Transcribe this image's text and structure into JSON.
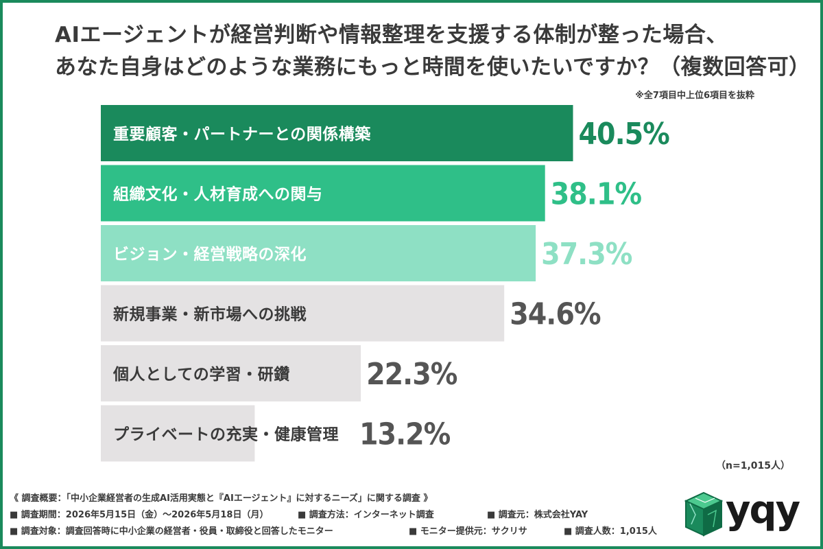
{
  "title_line1": "AIエージェントが経営判断や情報整理を支援する体制が整った場合、",
  "title_line2": "あなた自身はどのような業務にもっと時間を使いたいですか？（複数回答可）",
  "note": "※全7項目中上位6項目を抜粋",
  "sample_size": "（n=1,015人）",
  "chart_data": {
    "type": "bar",
    "orientation": "horizontal",
    "categories": [
      "重要顧客・パートナーとの関係構築",
      "組織文化・人材育成への関与",
      "ビジョン・経営戦略の深化",
      "新規事業・新市場への挑戦",
      "個人としての学習・研鑽",
      "プライベートの充実・健康管理"
    ],
    "values": [
      40.5,
      38.1,
      37.3,
      34.6,
      22.3,
      13.2
    ],
    "value_labels": [
      "40.5%",
      "38.1%",
      "37.3%",
      "34.6%",
      "22.3%",
      "13.2%"
    ],
    "unit": "%",
    "bar_colors": [
      "#1a8a5c",
      "#2fbf88",
      "#8ee0c4",
      "#e4e2e3",
      "#e4e2e3",
      "#e4e2e3"
    ],
    "label_colors": [
      "#ffffff",
      "#ffffff",
      "#ffffff",
      "#3a3a3a",
      "#3a3a3a",
      "#3a3a3a"
    ],
    "value_colors": [
      "#1a8a5c",
      "#2fbf88",
      "#8ee0c4",
      "#555555",
      "#555555",
      "#555555"
    ]
  },
  "footer": {
    "line1": "《 調査概要：「中小企業経営者の生成AI活用実態と『AIエージェント』に対するニーズ」に関する調査 》",
    "period": "■ 調査期間：2026年5月15日（金）〜2026年5月18日（月）",
    "method": "■ 調査方法：インターネット調査",
    "source": "■ 調査元：株式会社YAY",
    "target": "■ 調査対象：調査回答時に中小企業の経営者・役員・取締役と回答したモニター",
    "provider": "■ モニター提供元：サクリサ",
    "count": "■ 調査人数：1,015人"
  },
  "logo": {
    "text": "yqy",
    "colors": {
      "box_dark": "#0f6b45",
      "box_mid": "#1a8a5c",
      "box_light": "#4cc98f"
    }
  }
}
